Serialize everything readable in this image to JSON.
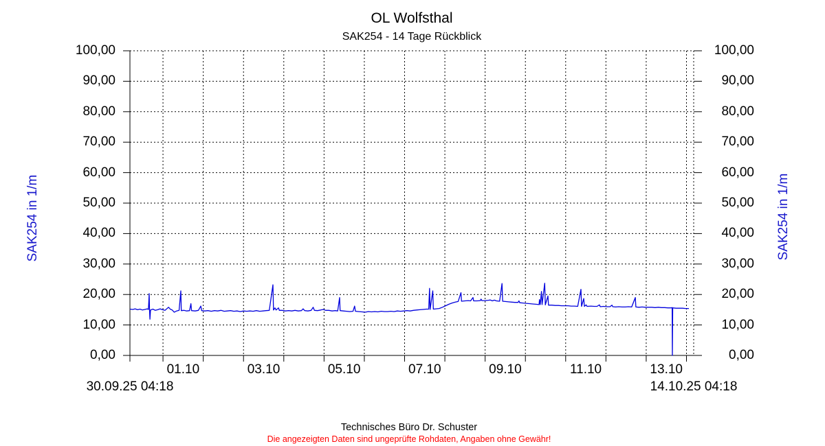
{
  "chart_data": {
    "type": "line",
    "title": "OL Wolfsthal",
    "subtitle": "SAK254 - 14 Tage Rückblick",
    "y_axis_label": "SAK254 in 1/m",
    "y_range": [
      0,
      100
    ],
    "y_ticks": [
      {
        "value": 0,
        "label": "0,00"
      },
      {
        "value": 10,
        "label": "10,00"
      },
      {
        "value": 20,
        "label": "20,00"
      },
      {
        "value": 30,
        "label": "30,00"
      },
      {
        "value": 40,
        "label": "40,00"
      },
      {
        "value": 50,
        "label": "50,00"
      },
      {
        "value": 60,
        "label": "60,00"
      },
      {
        "value": 70,
        "label": "70,00"
      },
      {
        "value": 80,
        "label": "80,00"
      },
      {
        "value": 90,
        "label": "90,00"
      },
      {
        "value": 100,
        "label": "100,00"
      }
    ],
    "x_total_days": 14,
    "x_first_midnight_day": 0.8208,
    "x_start_label": "30.09.25 04:18",
    "x_end_label": "14.10.25 04:18",
    "x_day_labels": [
      {
        "label": "01.10",
        "day": 1.3208
      },
      {
        "label": "03.10",
        "day": 3.3208
      },
      {
        "label": "05.10",
        "day": 5.3208
      },
      {
        "label": "07.10",
        "day": 7.3208
      },
      {
        "label": "09.10",
        "day": 9.3208
      },
      {
        "label": "11.10",
        "day": 11.3208
      },
      {
        "label": "13.10",
        "day": 13.3208
      }
    ],
    "grid": true,
    "legend": false,
    "colors": {
      "line": "#0000dd",
      "axis_label_text": "#1818cc",
      "grid": "#000000",
      "text": "#000000"
    },
    "series": [
      {
        "name": "SAK254",
        "unit": "1/m",
        "points": [
          [
            0.0,
            15.2
          ],
          [
            0.07,
            15.1
          ],
          [
            0.13,
            15.3
          ],
          [
            0.19,
            15.0
          ],
          [
            0.25,
            15.2
          ],
          [
            0.31,
            14.9
          ],
          [
            0.37,
            15.1
          ],
          [
            0.43,
            15.3
          ],
          [
            0.46,
            15.1
          ],
          [
            0.478,
            20.3
          ],
          [
            0.487,
            15.0
          ],
          [
            0.497,
            11.9
          ],
          [
            0.51,
            14.9
          ],
          [
            0.57,
            15.2
          ],
          [
            0.63,
            14.8
          ],
          [
            0.69,
            15.0
          ],
          [
            0.75,
            15.3
          ],
          [
            0.81,
            15.0
          ],
          [
            0.87,
            14.8
          ],
          [
            0.93,
            15.5
          ],
          [
            0.96,
            15.8
          ],
          [
            1.0,
            15.2
          ],
          [
            1.05,
            14.9
          ],
          [
            1.1,
            14.2
          ],
          [
            1.16,
            14.6
          ],
          [
            1.22,
            14.8
          ],
          [
            1.263,
            21.2
          ],
          [
            1.276,
            14.7
          ],
          [
            1.34,
            14.8
          ],
          [
            1.41,
            14.6
          ],
          [
            1.48,
            14.7
          ],
          [
            1.515,
            17.0
          ],
          [
            1.53,
            14.7
          ],
          [
            1.62,
            14.6
          ],
          [
            1.7,
            14.8
          ],
          [
            1.76,
            16.2
          ],
          [
            1.78,
            14.7
          ],
          [
            1.86,
            14.6
          ],
          [
            1.94,
            14.7
          ],
          [
            2.02,
            14.5
          ],
          [
            2.1,
            14.7
          ],
          [
            2.18,
            14.6
          ],
          [
            2.26,
            14.8
          ],
          [
            2.34,
            14.5
          ],
          [
            2.42,
            14.6
          ],
          [
            2.5,
            14.7
          ],
          [
            2.58,
            14.5
          ],
          [
            2.66,
            14.6
          ],
          [
            2.74,
            14.4
          ],
          [
            2.82,
            14.6
          ],
          [
            2.9,
            14.5
          ],
          [
            2.98,
            14.6
          ],
          [
            3.06,
            14.5
          ],
          [
            3.14,
            14.7
          ],
          [
            3.22,
            14.5
          ],
          [
            3.3,
            14.6
          ],
          [
            3.38,
            14.7
          ],
          [
            3.46,
            14.8
          ],
          [
            3.551,
            23.2
          ],
          [
            3.565,
            14.9
          ],
          [
            3.6,
            15.6
          ],
          [
            3.63,
            14.9
          ],
          [
            3.69,
            15.6
          ],
          [
            3.71,
            14.8
          ],
          [
            3.78,
            14.8
          ],
          [
            3.86,
            14.6
          ],
          [
            3.94,
            14.7
          ],
          [
            4.02,
            14.6
          ],
          [
            4.1,
            14.8
          ],
          [
            4.18,
            14.6
          ],
          [
            4.26,
            14.7
          ],
          [
            4.3,
            15.3
          ],
          [
            4.34,
            14.7
          ],
          [
            4.42,
            14.6
          ],
          [
            4.5,
            14.8
          ],
          [
            4.55,
            15.8
          ],
          [
            4.58,
            14.8
          ],
          [
            4.66,
            14.7
          ],
          [
            4.74,
            14.9
          ],
          [
            4.8,
            15.1
          ],
          [
            4.86,
            14.8
          ],
          [
            4.94,
            14.8
          ],
          [
            5.02,
            14.6
          ],
          [
            5.1,
            14.7
          ],
          [
            5.16,
            14.6
          ],
          [
            5.207,
            19.0
          ],
          [
            5.22,
            14.7
          ],
          [
            5.3,
            14.6
          ],
          [
            5.38,
            14.5
          ],
          [
            5.46,
            14.4
          ],
          [
            5.54,
            14.5
          ],
          [
            5.58,
            16.2
          ],
          [
            5.6,
            14.5
          ],
          [
            5.68,
            14.4
          ],
          [
            5.76,
            14.3
          ],
          [
            5.84,
            14.2
          ],
          [
            5.92,
            14.4
          ],
          [
            6.0,
            14.3
          ],
          [
            6.08,
            14.4
          ],
          [
            6.16,
            14.3
          ],
          [
            6.24,
            14.5
          ],
          [
            6.32,
            14.4
          ],
          [
            6.4,
            14.4
          ],
          [
            6.48,
            14.5
          ],
          [
            6.56,
            14.4
          ],
          [
            6.64,
            14.6
          ],
          [
            6.72,
            14.5
          ],
          [
            6.8,
            14.6
          ],
          [
            6.88,
            14.7
          ],
          [
            6.96,
            14.6
          ],
          [
            7.04,
            14.8
          ],
          [
            7.12,
            14.9
          ],
          [
            7.2,
            15.0
          ],
          [
            7.28,
            15.1
          ],
          [
            7.36,
            15.2
          ],
          [
            7.42,
            15.2
          ],
          [
            7.44,
            22.0
          ],
          [
            7.455,
            15.1
          ],
          [
            7.52,
            21.2
          ],
          [
            7.535,
            15.2
          ],
          [
            7.6,
            15.3
          ],
          [
            7.68,
            15.4
          ],
          [
            7.76,
            15.8
          ],
          [
            7.84,
            16.3
          ],
          [
            7.92,
            16.8
          ],
          [
            8.0,
            17.2
          ],
          [
            8.08,
            17.5
          ],
          [
            8.15,
            17.7
          ],
          [
            8.22,
            20.6
          ],
          [
            8.235,
            17.8
          ],
          [
            8.32,
            17.9
          ],
          [
            8.4,
            18.0
          ],
          [
            8.46,
            17.9
          ],
          [
            8.52,
            19.0
          ],
          [
            8.535,
            17.9
          ],
          [
            8.62,
            17.9
          ],
          [
            8.7,
            18.0
          ],
          [
            8.72,
            18.5
          ],
          [
            8.74,
            18.0
          ],
          [
            8.82,
            18.0
          ],
          [
            8.9,
            18.1
          ],
          [
            8.95,
            18.2
          ],
          [
            9.0,
            17.9
          ],
          [
            9.05,
            18.15
          ],
          [
            9.1,
            17.9
          ],
          [
            9.18,
            17.8
          ],
          [
            9.24,
            23.6
          ],
          [
            9.255,
            17.8
          ],
          [
            9.32,
            17.7
          ],
          [
            9.4,
            17.6
          ],
          [
            9.48,
            17.5
          ],
          [
            9.56,
            17.4
          ],
          [
            9.64,
            17.4
          ],
          [
            9.66,
            17.9
          ],
          [
            9.68,
            17.3
          ],
          [
            9.76,
            17.2
          ],
          [
            9.84,
            17.1
          ],
          [
            9.92,
            17.0
          ],
          [
            10.0,
            16.9
          ],
          [
            10.08,
            16.8
          ],
          [
            10.16,
            16.7
          ],
          [
            10.17,
            18.3
          ],
          [
            10.19,
            16.7
          ],
          [
            10.22,
            21.0
          ],
          [
            10.235,
            16.7
          ],
          [
            10.3,
            23.7
          ],
          [
            10.315,
            16.6
          ],
          [
            10.38,
            19.5
          ],
          [
            10.395,
            16.5
          ],
          [
            10.48,
            16.5
          ],
          [
            10.56,
            16.4
          ],
          [
            10.64,
            16.4
          ],
          [
            10.72,
            16.3
          ],
          [
            10.8,
            16.3
          ],
          [
            10.88,
            16.3
          ],
          [
            10.96,
            16.2
          ],
          [
            11.04,
            16.2
          ],
          [
            11.12,
            16.1
          ],
          [
            11.2,
            21.7
          ],
          [
            11.215,
            16.1
          ],
          [
            11.27,
            18.7
          ],
          [
            11.285,
            16.1
          ],
          [
            11.33,
            16.6
          ],
          [
            11.35,
            16.1
          ],
          [
            11.45,
            16.2
          ],
          [
            11.53,
            16.1
          ],
          [
            11.6,
            16.1
          ],
          [
            11.66,
            16.6
          ],
          [
            11.68,
            16.0
          ],
          [
            11.76,
            16.1
          ],
          [
            11.84,
            16.0
          ],
          [
            11.92,
            16.0
          ],
          [
            11.97,
            16.5
          ],
          [
            11.99,
            16.0
          ],
          [
            12.06,
            15.9
          ],
          [
            12.14,
            16.0
          ],
          [
            12.22,
            15.9
          ],
          [
            12.3,
            15.9
          ],
          [
            12.38,
            16.0
          ],
          [
            12.46,
            15.9
          ],
          [
            12.55,
            19.0
          ],
          [
            12.565,
            15.9
          ],
          [
            12.64,
            15.8
          ],
          [
            12.72,
            15.9
          ],
          [
            12.8,
            15.8
          ],
          [
            12.88,
            15.8
          ],
          [
            12.96,
            15.8
          ],
          [
            13.04,
            15.7
          ],
          [
            13.12,
            15.8
          ],
          [
            13.2,
            15.7
          ],
          [
            13.28,
            15.7
          ],
          [
            13.36,
            15.6
          ],
          [
            13.44,
            15.6
          ],
          [
            13.465,
            15.7
          ],
          [
            13.47,
            0.0
          ],
          [
            13.48,
            15.6
          ],
          [
            13.56,
            15.5
          ],
          [
            13.64,
            15.5
          ],
          [
            13.72,
            15.5
          ],
          [
            13.8,
            15.4
          ],
          [
            13.88,
            15.4
          ]
        ]
      }
    ]
  },
  "footer": {
    "company": "Technisches Büro Dr. Schuster",
    "warning": "Die angezeigten Daten sind ungeprüfte Rohdaten, Angaben ohne Gewähr!",
    "warning_color": "#ff0000"
  }
}
